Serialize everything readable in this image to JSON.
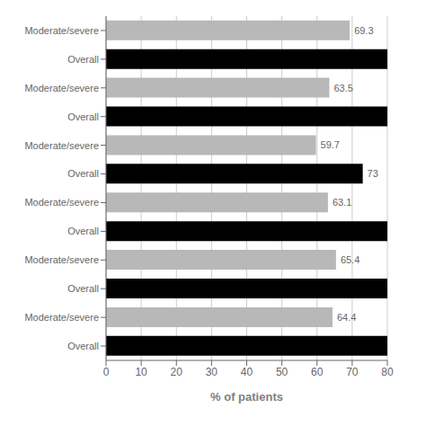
{
  "chart_data": {
    "type": "bar",
    "orientation": "horizontal",
    "categories": [
      "Moderate/severe",
      "Overall",
      "Moderate/severe",
      "Overall",
      "Moderate/severe",
      "Overall",
      "Moderate/severe",
      "Overall",
      "Moderate/severe",
      "Overall",
      "Moderate/severe",
      "Overall"
    ],
    "values": [
      69.3,
      80,
      63.5,
      80,
      59.7,
      73,
      63.1,
      80,
      65.4,
      80,
      64.4,
      80
    ],
    "value_labels": [
      "69.3",
      null,
      "63.5",
      null,
      "59.7",
      "73",
      "63.1",
      null,
      "65.4",
      null,
      "64.4",
      null
    ],
    "colors": [
      "#b8b8b8",
      "#000000",
      "#b8b8b8",
      "#000000",
      "#b8b8b8",
      "#000000",
      "#b8b8b8",
      "#000000",
      "#b8b8b8",
      "#000000",
      "#b8b8b8",
      "#000000"
    ],
    "xlabel": "% of patients",
    "xlim": [
      0,
      80
    ],
    "xticks": [
      0,
      10,
      20,
      30,
      40,
      50,
      60,
      70,
      80
    ],
    "grid": true
  }
}
